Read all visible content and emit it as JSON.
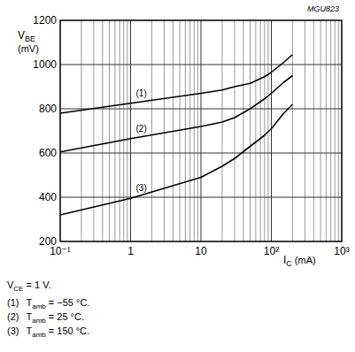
{
  "chart_data": {
    "type": "line",
    "log": "x",
    "grid": true,
    "annotations": [
      {
        "text": "MGU823"
      }
    ],
    "ylabel": {
      "main": "V",
      "sub": "BE",
      "unit": "(mV)"
    },
    "xlabel": {
      "main": "I",
      "sub": "C",
      "unit": "(mA)"
    },
    "xlim": [
      0.1,
      1000
    ],
    "xticks": [
      {
        "value": 0.1,
        "label": "10⁻¹"
      },
      1,
      10,
      {
        "value": 100,
        "label": "10²"
      },
      {
        "value": 1000,
        "label": "10³"
      }
    ],
    "ylim": [
      200,
      1200
    ],
    "yticks": [
      200,
      400,
      600,
      800,
      1000,
      1200
    ],
    "x": [
      0.1,
      1,
      10,
      20,
      30,
      50,
      80,
      100,
      150,
      200
    ],
    "series": [
      {
        "name": "(1)",
        "color": "#000000",
        "values": [
          780,
          825,
          870,
          885,
          900,
          915,
          945,
          965,
          1010,
          1045
        ]
      },
      {
        "name": "(2)",
        "color": "#000000",
        "values": [
          605,
          665,
          720,
          740,
          760,
          800,
          845,
          870,
          920,
          950
        ]
      },
      {
        "name": "(3)",
        "color": "#000000",
        "values": [
          320,
          395,
          490,
          540,
          575,
          630,
          680,
          710,
          780,
          820
        ]
      }
    ],
    "notes": [
      {
        "main": "V",
        "sub": "CE",
        "text": " = 1 V."
      },
      {
        "prefix": "(1)",
        "main": "T",
        "sub": "amb",
        "text": " = −55 °C."
      },
      {
        "prefix": "(2)",
        "main": "T",
        "sub": "amb",
        "text": " = 25 °C."
      },
      {
        "prefix": "(3)",
        "main": "T",
        "sub": "amb",
        "text": " = 150 °C."
      }
    ]
  }
}
